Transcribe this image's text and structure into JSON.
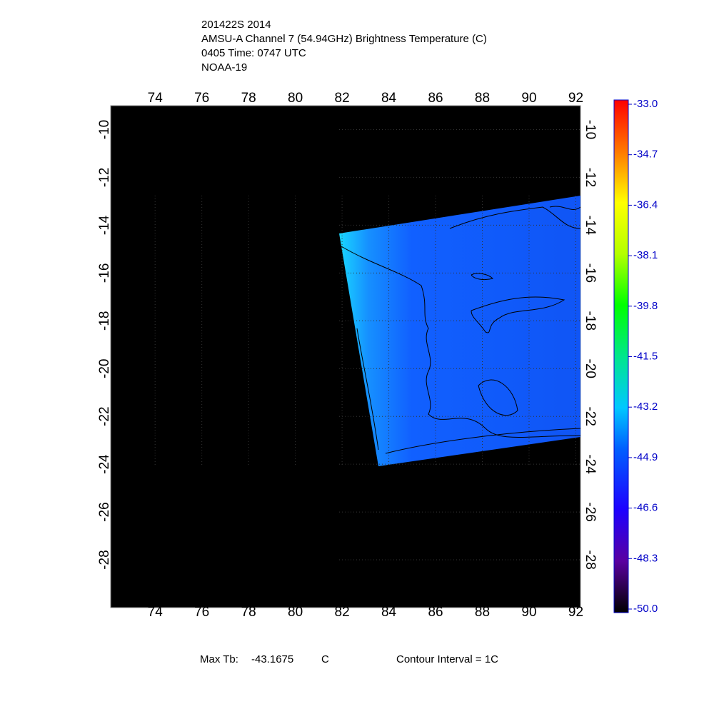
{
  "header": {
    "lines": [
      "201422S 2014",
      "AMSU-A Channel 7 (54.94GHz) Brightness Temperature (C)",
      "0405 Time: 0747 UTC",
      "NOAA-19"
    ]
  },
  "map": {
    "xlim": [
      72.1,
      92.2
    ],
    "ylim": [
      -9,
      -30
    ],
    "xticks": [
      74,
      76,
      78,
      80,
      82,
      84,
      86,
      88,
      90,
      92
    ],
    "yticks": [
      -10,
      -12,
      -14,
      -16,
      -18,
      -20,
      -22,
      -24,
      -26,
      -28
    ]
  },
  "colorbar": {
    "lim": [
      -50,
      -33
    ],
    "ticks": [
      {
        "value": -33,
        "label": "-33.0"
      },
      {
        "value": -34.7,
        "label": "-34.7"
      },
      {
        "value": -36.4,
        "label": "-36.4"
      },
      {
        "value": -38.1,
        "label": "-38.1"
      },
      {
        "value": -39.8,
        "label": "-39.8"
      },
      {
        "value": -41.5,
        "label": "-41.5"
      },
      {
        "value": -43.2,
        "label": "-43.2"
      },
      {
        "value": -44.9,
        "label": "-44.9"
      },
      {
        "value": -46.6,
        "label": "-46.6"
      },
      {
        "value": -48.3,
        "label": "-48.3"
      },
      {
        "value": -50,
        "label": "-50.0"
      }
    ]
  },
  "footer": {
    "max_label": "Max Tb:",
    "max_value": "-43.1675",
    "max_unit": "C",
    "contour": "Contour Interval = 1C"
  }
}
